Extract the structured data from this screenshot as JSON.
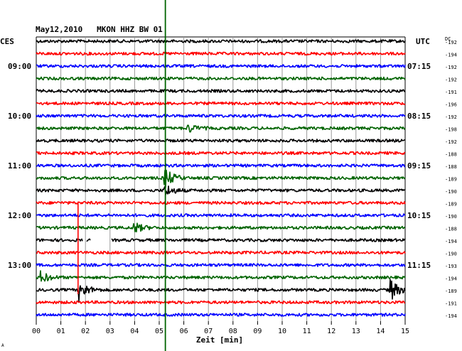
{
  "chart_data": {
    "type": "line",
    "title": "May12,2010   MKON HHZ BW 01",
    "left_timezone": "CES",
    "right_timezone": "UTC",
    "offset_label": "DC",
    "xlabel": "Zeit [min]",
    "x_ticks": [
      "00",
      "01",
      "02",
      "03",
      "04",
      "05",
      "06",
      "07",
      "08",
      "09",
      "10",
      "11",
      "12",
      "13",
      "14",
      "15"
    ],
    "xlim": [
      0,
      15
    ],
    "grid": true,
    "colors": [
      "#000000",
      "#ff0000",
      "#0000ff",
      "#006400"
    ],
    "trace_color_cycle": [
      "black",
      "red",
      "blue",
      "green"
    ],
    "left_time_labels": [
      {
        "row": 2,
        "text": "09:00"
      },
      {
        "row": 6,
        "text": "10:00"
      },
      {
        "row": 10,
        "text": "11:00"
      },
      {
        "row": 14,
        "text": "12:00"
      },
      {
        "row": 18,
        "text": "13:00"
      }
    ],
    "right_time_labels": [
      {
        "row": 2,
        "text": "07:15"
      },
      {
        "row": 6,
        "text": "08:15"
      },
      {
        "row": 10,
        "text": "09:15"
      },
      {
        "row": 14,
        "text": "10:15"
      },
      {
        "row": 18,
        "text": "11:15"
      }
    ],
    "trace_offsets": [
      "-192",
      "-194",
      "-192",
      "-192",
      "-191",
      "-196",
      "-192",
      "-198",
      "-192",
      "-188",
      "-188",
      "-189",
      "-190",
      "-189",
      "-190",
      "-188",
      "-194",
      "-190",
      "-193",
      "-194",
      "-189",
      "-191",
      "-194"
    ],
    "events": [
      {
        "row": 7,
        "minute": 6.2,
        "amplitude": 0.8
      },
      {
        "row": 11,
        "minute": 5.2,
        "amplitude": 2.2
      },
      {
        "row": 12,
        "minute": 5.25,
        "amplitude": 1.2
      },
      {
        "row": 15,
        "minute": 4.0,
        "amplitude": 1.0
      },
      {
        "row": 19,
        "minute": 0.2,
        "amplitude": 1.1
      },
      {
        "row": 20,
        "minute": 1.75,
        "amplitude": 2.0
      },
      {
        "row": 20,
        "minute": 14.4,
        "amplitude": 2.2
      }
    ],
    "gaps": [
      {
        "row": 16,
        "from_minute": 1.9,
        "to_minute": 2.05
      },
      {
        "row": 16,
        "from_minute": 2.2,
        "to_minute": 3.05
      }
    ],
    "event_markers": [
      {
        "minute": 5.25,
        "color": "#006400"
      },
      {
        "minute": 1.7,
        "color": "#ff0000"
      }
    ],
    "footer_mark": "A"
  }
}
